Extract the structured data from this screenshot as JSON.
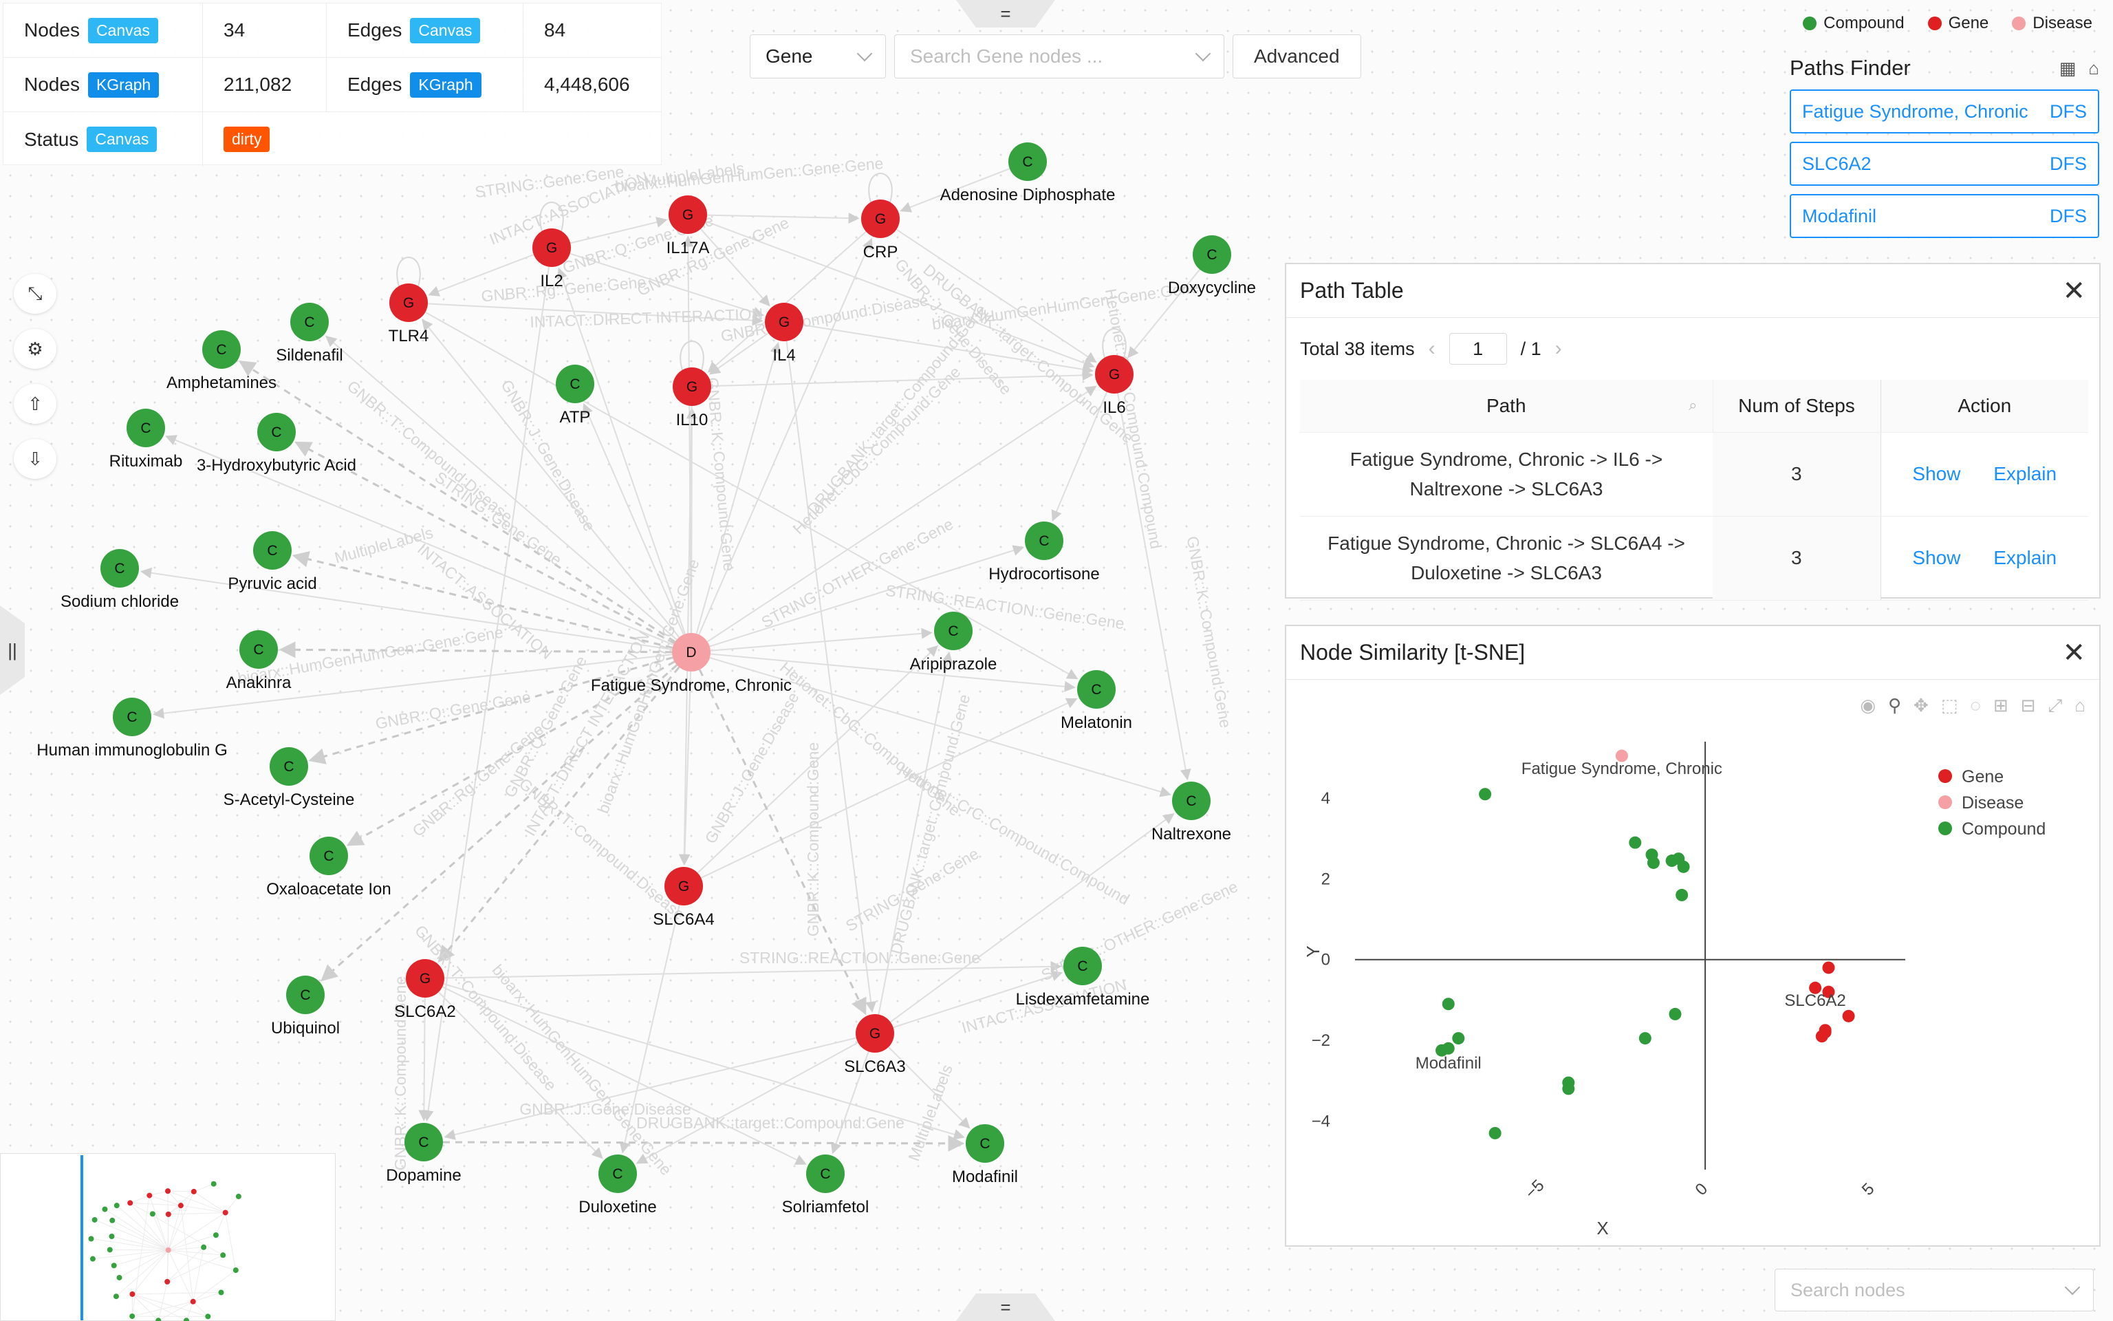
{
  "stats": {
    "rows": [
      {
        "label1": "Nodes",
        "tag1": "Canvas",
        "val1": "34",
        "label2": "Edges",
        "tag2": "Canvas",
        "val2": "84"
      },
      {
        "label1": "Nodes",
        "tag1": "KGraph",
        "val1": "211,082",
        "label2": "Edges",
        "tag2": "KGraph",
        "val2": "4,448,606"
      }
    ],
    "status_label": "Status",
    "status_tag": "Canvas",
    "status_value": "dirty"
  },
  "search": {
    "type_value": "Gene",
    "placeholder": "Search Gene nodes ...",
    "advanced_label": "Advanced"
  },
  "handles": {
    "top": "=",
    "bottom": "=",
    "left": "||"
  },
  "legend": [
    {
      "label": "Compound",
      "color": "#2e9a3a"
    },
    {
      "label": "Gene",
      "color": "#e02020"
    },
    {
      "label": "Disease",
      "color": "#f4a0a5"
    }
  ],
  "paths_finder": {
    "title": "Paths Finder",
    "items": [
      {
        "name": "Fatigue Syndrome, Chronic",
        "algo": "DFS"
      },
      {
        "name": "SLC6A2",
        "algo": "DFS"
      },
      {
        "name": "Modafinil",
        "algo": "DFS"
      }
    ]
  },
  "path_table": {
    "title": "Path Table",
    "total": "Total 38 items",
    "page": "1",
    "page_total": "/ 1",
    "columns": [
      "Path",
      "Num of Steps",
      "Action"
    ],
    "rows": [
      {
        "path1": "Fatigue Syndrome, Chronic -> IL6 ->",
        "path2": "Naltrexone -> SLC6A3",
        "steps": "3",
        "show": "Show",
        "explain": "Explain"
      },
      {
        "path1": "Fatigue Syndrome, Chronic -> SLC6A4 ->",
        "path2": "Duloxetine -> SLC6A3",
        "steps": "3",
        "show": "Show",
        "explain": "Explain"
      }
    ]
  },
  "tsne": {
    "title": "Node Similarity [t-SNE]"
  },
  "chart_data": {
    "type": "scatter",
    "xlabel": "X",
    "ylabel": "Y",
    "xlim": [
      -10.5,
      6
    ],
    "ylim": [
      -5,
      5.4
    ],
    "xticks": [
      -5,
      0,
      5
    ],
    "yticks": [
      4,
      2,
      0,
      -2,
      -4
    ],
    "grid": false,
    "legend_position": "top-right",
    "series": [
      {
        "name": "Gene",
        "color": "#e02020",
        "points": [
          [
            3.7,
            -0.2
          ],
          [
            3.3,
            -0.7
          ],
          [
            3.7,
            -0.8
          ],
          [
            4.3,
            -1.4
          ],
          [
            3.6,
            -1.75
          ],
          [
            3.5,
            -1.9
          ],
          [
            3.6,
            -1.8
          ]
        ]
      },
      {
        "name": "Disease",
        "color": "#f4a0a5",
        "points": [
          [
            -2.5,
            5.05
          ]
        ]
      },
      {
        "name": "Compound",
        "color": "#2e9a3a",
        "points": [
          [
            -6.6,
            4.1
          ],
          [
            -2.1,
            2.9
          ],
          [
            -1.6,
            2.6
          ],
          [
            -1.55,
            2.4
          ],
          [
            -1.0,
            2.45
          ],
          [
            -0.8,
            2.5
          ],
          [
            -0.65,
            2.3
          ],
          [
            -0.7,
            1.6
          ],
          [
            -0.9,
            -1.35
          ],
          [
            -1.8,
            -1.95
          ],
          [
            -7.7,
            -1.1
          ],
          [
            -7.4,
            -1.95
          ],
          [
            -7.7,
            -2.2
          ],
          [
            -7.9,
            -2.25
          ],
          [
            -4.1,
            -3.05
          ],
          [
            -4.1,
            -3.2
          ],
          [
            -6.3,
            -4.3
          ]
        ]
      }
    ],
    "annotations": [
      {
        "text": "Fatigue Syndrome, Chronic",
        "x": -2.5,
        "y": 4.6
      },
      {
        "text": "SLC6A2",
        "x": 3.3,
        "y": -1.15
      },
      {
        "text": "Modafinil",
        "x": -7.7,
        "y": -2.7
      }
    ]
  },
  "graph": {
    "nodes": [
      {
        "id": "fatigue",
        "type": "D",
        "label": "Fatigue Syndrome, Chronic"
      },
      {
        "id": "IL17A",
        "type": "G",
        "label": "IL17A"
      },
      {
        "id": "CRP",
        "type": "G",
        "label": "CRP"
      },
      {
        "id": "IL2",
        "type": "G",
        "label": "IL2"
      },
      {
        "id": "TLR4",
        "type": "G",
        "label": "TLR4"
      },
      {
        "id": "IL4",
        "type": "G",
        "label": "IL4"
      },
      {
        "id": "IL10",
        "type": "G",
        "label": "IL10"
      },
      {
        "id": "IL6",
        "type": "G",
        "label": "IL6"
      },
      {
        "id": "SLC6A4",
        "type": "G",
        "label": "SLC6A4"
      },
      {
        "id": "SLC6A2",
        "type": "G",
        "label": "SLC6A2"
      },
      {
        "id": "SLC6A3",
        "type": "G",
        "label": "SLC6A3"
      },
      {
        "id": "adenosine",
        "type": "C",
        "label": "Adenosine Diphosphate"
      },
      {
        "id": "doxy",
        "type": "C",
        "label": "Doxycycline"
      },
      {
        "id": "sildenafil",
        "type": "C",
        "label": "Sildenafil"
      },
      {
        "id": "amph",
        "type": "C",
        "label": "Amphetamines"
      },
      {
        "id": "atp",
        "type": "C",
        "label": "ATP"
      },
      {
        "id": "ritux",
        "type": "C",
        "label": "Rituximab"
      },
      {
        "id": "hba",
        "type": "C",
        "label": "3-Hydroxybutyric Acid"
      },
      {
        "id": "nacl",
        "type": "C",
        "label": "Sodium chloride"
      },
      {
        "id": "pyruvic",
        "type": "C",
        "label": "Pyruvic acid"
      },
      {
        "id": "hydro",
        "type": "C",
        "label": "Hydrocortisone"
      },
      {
        "id": "anakinra",
        "type": "C",
        "label": "Anakinra"
      },
      {
        "id": "aripip",
        "type": "C",
        "label": "Aripiprazole"
      },
      {
        "id": "melatonin",
        "type": "C",
        "label": "Melatonin"
      },
      {
        "id": "hig",
        "type": "C",
        "label": "Human immunoglobulin G"
      },
      {
        "id": "sac",
        "type": "C",
        "label": "S-Acetyl-Cysteine"
      },
      {
        "id": "naltrexone",
        "type": "C",
        "label": "Naltrexone"
      },
      {
        "id": "oxalo",
        "type": "C",
        "label": "Oxaloacetate Ion"
      },
      {
        "id": "lisdex",
        "type": "C",
        "label": "Lisdexamfetamine"
      },
      {
        "id": "ubiquinol",
        "type": "C",
        "label": "Ubiquinol"
      },
      {
        "id": "dopamine",
        "type": "C",
        "label": "Dopamine"
      },
      {
        "id": "duloxetine",
        "type": "C",
        "label": "Duloxetine"
      },
      {
        "id": "solri",
        "type": "C",
        "label": "Solriamfetol"
      },
      {
        "id": "modafinil",
        "type": "C",
        "label": "Modafinil"
      }
    ],
    "edge_labels": [
      "MultipleLabels",
      "bioarx::HumGenHumGen::Gene:Gene",
      "STRING::Gene:Gene",
      "INTACT::ASSOCIATION",
      "GNBR::Q::Gene:Gene",
      "GNBR::Rg::Gene:Gene",
      "INTACT::DIRECT INTERACTION",
      "GNBR::T::Compound:Disease",
      "GNBR::J::Gene:Disease",
      "GNBR::K::Compound:Gene",
      "Hetionet::CbG::Compound:Gene",
      "DRUGBANK::target::Compound:Gene",
      "Hetionet::CrC::Compound:Compound",
      "STRING::OTHER::Gene:Gene",
      "STRING::REACTION::Gene:Gene",
      "bioarx::HumGenHumGen::Gene:Gene",
      "GNBR::T::Compound:Disease",
      "DRUGBANK::target::Compound:Gene",
      "GNBR::J::Gene:Disease",
      "GNBR::K::Compound:Gene"
    ]
  },
  "bottom_search": {
    "placeholder": "Search nodes"
  }
}
